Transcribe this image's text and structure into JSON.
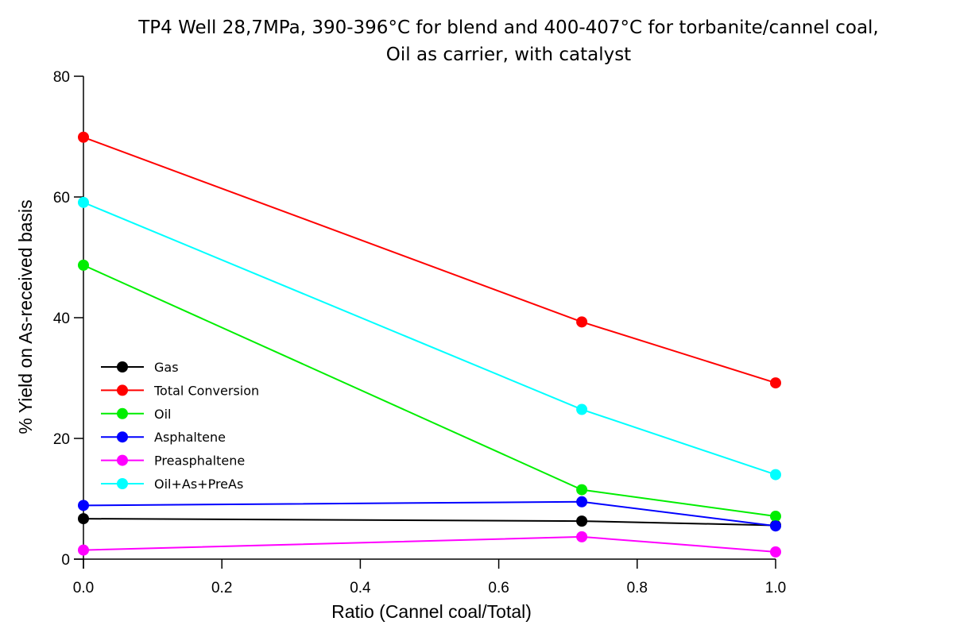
{
  "chart_data": {
    "type": "line",
    "title": [
      "TP4 Well 28,7MPa, 390-396°C for blend and 400-407°C for torbanite/cannel coal,",
      "Oil as carrier, with catalyst"
    ],
    "xlabel": "Ratio (Cannel coal/Total)",
    "ylabel": "% Yield on As-received basis",
    "xlim": [
      0,
      1.0
    ],
    "ylim": [
      0,
      80
    ],
    "xticks": [
      "0.0",
      "0.2",
      "0.4",
      "0.6",
      "0.8",
      "1.0"
    ],
    "yticks": [
      "0",
      "20",
      "40",
      "60",
      "80"
    ],
    "grid": false,
    "legend_position": "lower-left",
    "x": [
      0.0,
      0.72,
      1.0
    ],
    "series": [
      {
        "name": "Gas",
        "color": "#000000",
        "values": [
          6.7,
          6.3,
          5.6
        ]
      },
      {
        "name": "Total Conversion",
        "color": "#ff0000",
        "values": [
          69.9,
          39.3,
          29.2
        ]
      },
      {
        "name": "Oil",
        "color": "#00ee00",
        "values": [
          48.7,
          11.5,
          7.1
        ]
      },
      {
        "name": "Asphaltene",
        "color": "#0000ff",
        "values": [
          8.9,
          9.5,
          5.5
        ]
      },
      {
        "name": "Preasphaltene",
        "color": "#ff00ff",
        "values": [
          1.5,
          3.7,
          1.2
        ]
      },
      {
        "name": "Oil+As+PreAs",
        "color": "#00ffff",
        "values": [
          59.1,
          24.8,
          14.0
        ]
      }
    ]
  }
}
